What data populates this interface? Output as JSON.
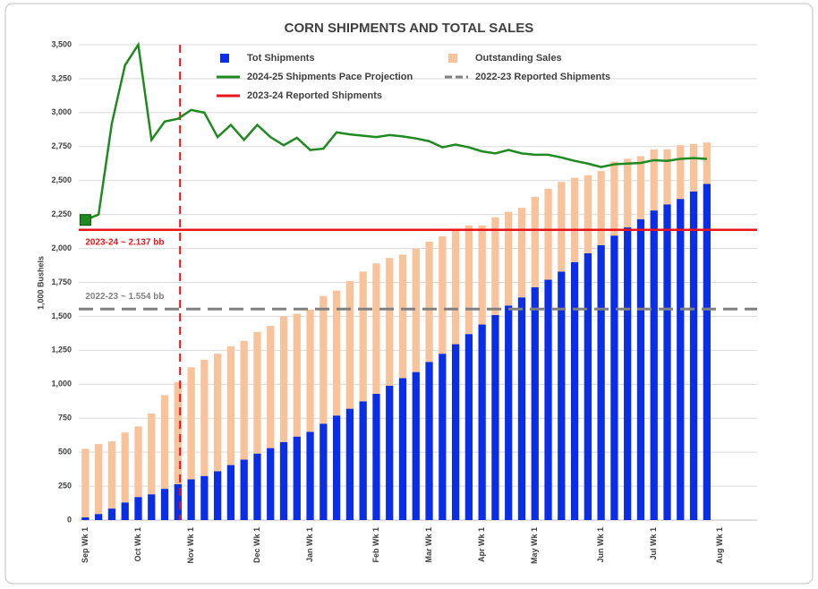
{
  "chart_data": {
    "type": "bar",
    "title": "CORN SHIPMENTS AND TOTAL SALES",
    "y_label": "1,000 Bushels",
    "categories": [
      "Sep Wk 1",
      null,
      null,
      null,
      "Oct Wk 1",
      null,
      null,
      null,
      "Nov Wk 1",
      null,
      null,
      null,
      null,
      "Dec Wk 1",
      null,
      null,
      null,
      "Jan Wk 1",
      null,
      null,
      null,
      null,
      "Feb Wk 1",
      null,
      null,
      null,
      "Mar Wk 1",
      null,
      null,
      null,
      "Apr Wk 1",
      null,
      null,
      null,
      "May Wk 1",
      null,
      null,
      null,
      null,
      "Jun Wk 1",
      null,
      null,
      null,
      "Jul Wk 1",
      null,
      null,
      null,
      null,
      "Aug Wk 1"
    ],
    "series": [
      {
        "name": "Tot Shipments",
        "type": "bar",
        "color": "#0a2ee8",
        "values": [
          20,
          45,
          85,
          130,
          170,
          190,
          230,
          265,
          300,
          325,
          360,
          405,
          445,
          490,
          530,
          575,
          615,
          650,
          710,
          770,
          820,
          875,
          930,
          990,
          1045,
          1090,
          1165,
          1225,
          1295,
          1370,
          1440,
          1510,
          1580,
          1640,
          1715,
          1770,
          1830,
          1900,
          1965,
          2025,
          2095,
          2155,
          2215,
          2280,
          2325,
          2365,
          2420,
          2475,
          null
        ]
      },
      {
        "name": "Outstanding Sales",
        "type": "bar",
        "color": "#f8c39b",
        "values": [
          505,
          515,
          495,
          515,
          520,
          595,
          690,
          750,
          825,
          855,
          865,
          875,
          875,
          895,
          900,
          925,
          905,
          900,
          940,
          920,
          940,
          955,
          960,
          940,
          910,
          910,
          885,
          865,
          845,
          800,
          730,
          720,
          690,
          660,
          665,
          670,
          660,
          620,
          575,
          545,
          545,
          505,
          465,
          450,
          405,
          395,
          350,
          305,
          null
        ]
      },
      {
        "name": "2024-25 Shipments Pace Projection",
        "type": "line",
        "color": "#1f8a1f",
        "values": [
          2210,
          2250,
          2920,
          3350,
          3500,
          2800,
          2935,
          2955,
          3020,
          3000,
          2820,
          2910,
          2800,
          2910,
          2820,
          2760,
          2815,
          2725,
          2735,
          2855,
          2840,
          2830,
          2820,
          2835,
          2825,
          2810,
          2790,
          2745,
          2765,
          2745,
          2715,
          2700,
          2725,
          2700,
          2690,
          2690,
          2670,
          2645,
          2625,
          2600,
          2620,
          2625,
          2630,
          2650,
          2645,
          2660,
          2665,
          2660,
          null
        ]
      }
    ],
    "reference_lines": [
      {
        "name": "2022-23 Reported Shipments",
        "value": 1554,
        "color": "#808080",
        "dashed": true,
        "label": "2022-23 ~ 1.554 bb",
        "label_color": "#808080"
      },
      {
        "name": "2023-24 Reported Shipments",
        "value": 2137,
        "color": "#e8141a",
        "dashed": false,
        "label": "2023-24 ~ 2.137 bb",
        "label_color": "#e8141a"
      }
    ],
    "ylim": [
      0,
      3500
    ],
    "yticks": [
      0,
      250,
      500,
      750,
      {
        "value": 1000,
        "label": "1,000"
      },
      {
        "value": 1250,
        "label": "1,250"
      },
      {
        "value": 1500,
        "label": "1,500"
      },
      {
        "value": 1750,
        "label": "1,750"
      },
      {
        "value": 2000,
        "label": "2,000"
      },
      {
        "value": 2250,
        "label": "2,250"
      },
      {
        "value": 2500,
        "label": "2,500"
      },
      {
        "value": 2750,
        "label": "2,750"
      },
      {
        "value": 3000,
        "label": "3,000"
      },
      {
        "value": 3250,
        "label": "3,250"
      },
      {
        "value": 3500,
        "label": "3,500"
      }
    ],
    "grid": true,
    "stacked": true
  }
}
